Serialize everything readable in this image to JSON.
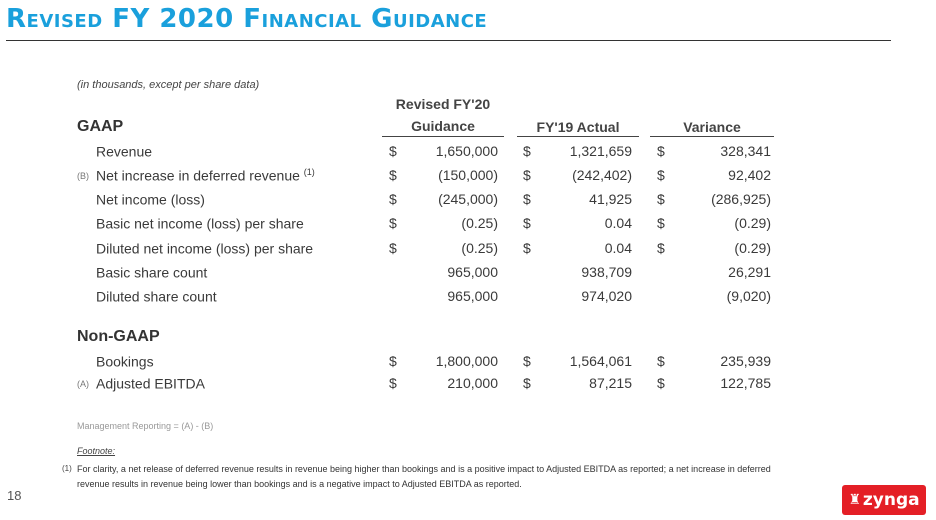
{
  "page_title": "Revised FY 2020 Financial Guidance",
  "units_note": "(in thousands, except per share data)",
  "columns": {
    "guidance_line1": "Revised FY'20",
    "guidance_line2": "Guidance",
    "actual": "FY'19 Actual",
    "variance": "Variance"
  },
  "gaap": {
    "heading": "GAAP",
    "rows": [
      {
        "tag": "",
        "label": "Revenue",
        "sup": "",
        "c1": "$",
        "v1": "1,650,000",
        "c2": "$",
        "v2": "1,321,659",
        "c3": "$",
        "v3": "328,341"
      },
      {
        "tag": "(B)",
        "label": "Net increase in deferred revenue",
        "sup": "(1)",
        "c1": "$",
        "v1": "(150,000)",
        "c2": "$",
        "v2": "(242,402)",
        "c3": "$",
        "v3": "92,402"
      },
      {
        "tag": "",
        "label": "Net income (loss)",
        "sup": "",
        "c1": "$",
        "v1": "(245,000)",
        "c2": "$",
        "v2": "41,925",
        "c3": "$",
        "v3": "(286,925)"
      },
      {
        "tag": "",
        "label": "Basic net income (loss) per share",
        "sup": "",
        "c1": "$",
        "v1": "(0.25)",
        "c2": "$",
        "v2": "0.04",
        "c3": "$",
        "v3": "(0.29)"
      },
      {
        "tag": "",
        "label": "Diluted net income (loss) per share",
        "sup": "",
        "c1": "$",
        "v1": "(0.25)",
        "c2": "$",
        "v2": "0.04",
        "c3": "$",
        "v3": "(0.29)"
      },
      {
        "tag": "",
        "label": "Basic share count",
        "sup": "",
        "c1": "",
        "v1": "965,000",
        "c2": "",
        "v2": "938,709",
        "c3": "",
        "v3": "26,291"
      },
      {
        "tag": "",
        "label": "Diluted share count",
        "sup": "",
        "c1": "",
        "v1": "965,000",
        "c2": "",
        "v2": "974,020",
        "c3": "",
        "v3": "(9,020)"
      }
    ]
  },
  "non_gaap": {
    "heading": "Non-GAAP",
    "rows": [
      {
        "tag": "",
        "label": "Bookings",
        "sup": "",
        "c1": "$",
        "v1": "1,800,000",
        "c2": "$",
        "v2": "1,564,061",
        "c3": "$",
        "v3": "235,939"
      },
      {
        "tag": "(A)",
        "label": "Adjusted EBITDA",
        "sup": "",
        "c1": "$",
        "v1": "210,000",
        "c2": "$",
        "v2": "87,215",
        "c3": "$",
        "v3": "122,785"
      }
    ]
  },
  "management_reporting": "Management Reporting = (A) - (B)",
  "footnote": {
    "heading": "Footnote:",
    "marker": "(1)",
    "text": "For clarity, a net release of deferred revenue results in revenue being higher than bookings and is a positive impact to Adjusted EBITDA as reported; a net increase in deferred revenue results in revenue being lower than bookings and is a negative impact to Adjusted EBITDA as reported."
  },
  "page_number": "18",
  "logo": {
    "text": "zynga",
    "icon": "zynga-dog-icon"
  },
  "colors": {
    "title": "#1aa0dc",
    "logo_bg": "#e41f26"
  }
}
